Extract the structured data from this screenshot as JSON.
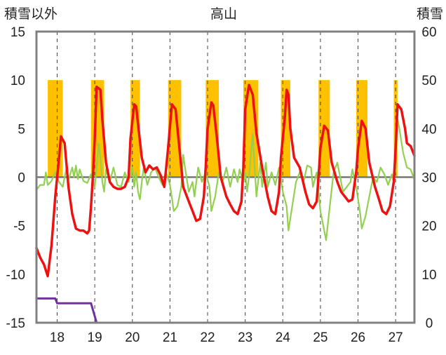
{
  "chart_data": {
    "type": "line",
    "title": "高山",
    "left_axis_label": "積雪以外",
    "right_axis_label": "積雪",
    "left_ylim": [
      -15,
      15
    ],
    "left_ticks": [
      15,
      10,
      5,
      0,
      -5,
      -10,
      -15
    ],
    "right_ylim": [
      0,
      60
    ],
    "right_ticks": [
      60,
      50,
      40,
      30,
      20,
      10,
      0
    ],
    "xlim": [
      17.45,
      27.5
    ],
    "x_ticks": [
      18,
      19,
      20,
      21,
      22,
      23,
      24,
      25,
      26,
      27
    ],
    "grid": {
      "vertical_dashed": true,
      "zero_line": true
    },
    "colors": {
      "temperature": "#ee1111",
      "secondary": "#92d050",
      "sunshine": "#ffc000",
      "snow_depth": "#7030a0",
      "frame": "#808080",
      "zero": "#777777"
    },
    "sunshine_bars": {
      "value": 10,
      "periods": [
        [
          17.75,
          18.15
        ],
        [
          18.9,
          19.25
        ],
        [
          19.95,
          20.2
        ],
        [
          20.95,
          21.3
        ],
        [
          21.95,
          22.3
        ],
        [
          22.95,
          23.35
        ],
        [
          23.95,
          24.2
        ],
        [
          24.95,
          25.25
        ],
        [
          25.95,
          26.25
        ],
        [
          26.95,
          27.05
        ]
      ]
    },
    "series": [
      {
        "key": "temperature",
        "points": [
          [
            17.45,
            -7.3
          ],
          [
            17.55,
            -8.3
          ],
          [
            17.65,
            -9.0
          ],
          [
            17.75,
            -10.2
          ],
          [
            17.85,
            -7.0
          ],
          [
            17.95,
            -2.0
          ],
          [
            18.05,
            2.0
          ],
          [
            18.1,
            4.2
          ],
          [
            18.2,
            3.5
          ],
          [
            18.3,
            -1.0
          ],
          [
            18.4,
            -3.8
          ],
          [
            18.5,
            -5.3
          ],
          [
            18.6,
            -5.5
          ],
          [
            18.7,
            -5.5
          ],
          [
            18.8,
            -5.8
          ],
          [
            18.85,
            -5.5
          ],
          [
            18.9,
            -3.0
          ],
          [
            18.95,
            0.0
          ],
          [
            19.0,
            4.0
          ],
          [
            19.05,
            9.3
          ],
          [
            19.15,
            9.0
          ],
          [
            19.2,
            6.0
          ],
          [
            19.3,
            1.5
          ],
          [
            19.4,
            -0.5
          ],
          [
            19.5,
            -1.0
          ],
          [
            19.6,
            -1.2
          ],
          [
            19.7,
            -1.2
          ],
          [
            19.8,
            -1.0
          ],
          [
            19.9,
            0.0
          ],
          [
            19.95,
            4.0
          ],
          [
            20.05,
            7.5
          ],
          [
            20.1,
            7.3
          ],
          [
            20.15,
            5.5
          ],
          [
            20.25,
            2.0
          ],
          [
            20.35,
            0.5
          ],
          [
            20.45,
            1.2
          ],
          [
            20.55,
            0.8
          ],
          [
            20.65,
            1.0
          ],
          [
            20.75,
            0.2
          ],
          [
            20.85,
            -1.0
          ],
          [
            20.95,
            3.0
          ],
          [
            21.05,
            7.5
          ],
          [
            21.15,
            7.0
          ],
          [
            21.25,
            3.0
          ],
          [
            21.35,
            -1.0
          ],
          [
            21.5,
            -2.5
          ],
          [
            21.6,
            -3.5
          ],
          [
            21.7,
            -4.5
          ],
          [
            21.8,
            -4.3
          ],
          [
            21.9,
            -2.0
          ],
          [
            21.95,
            1.0
          ],
          [
            22.0,
            5.0
          ],
          [
            22.1,
            7.7
          ],
          [
            22.15,
            7.4
          ],
          [
            22.25,
            4.0
          ],
          [
            22.35,
            0.0
          ],
          [
            22.5,
            -2.0
          ],
          [
            22.6,
            -2.8
          ],
          [
            22.7,
            -3.5
          ],
          [
            22.8,
            -3.8
          ],
          [
            22.9,
            -2.5
          ],
          [
            22.95,
            1.0
          ],
          [
            23.0,
            7.0
          ],
          [
            23.1,
            9.5
          ],
          [
            23.2,
            8.5
          ],
          [
            23.3,
            4.5
          ],
          [
            23.45,
            1.0
          ],
          [
            23.6,
            -2.0
          ],
          [
            23.7,
            -3.5
          ],
          [
            23.8,
            -3.8
          ],
          [
            23.9,
            -1.5
          ],
          [
            23.95,
            2.0
          ],
          [
            24.05,
            6.0
          ],
          [
            24.1,
            9.0
          ],
          [
            24.15,
            8.5
          ],
          [
            24.2,
            5.0
          ],
          [
            24.3,
            2.0
          ],
          [
            24.45,
            1.0
          ],
          [
            24.6,
            -1.5
          ],
          [
            24.7,
            -2.8
          ],
          [
            24.8,
            -3.2
          ],
          [
            24.9,
            -2.5
          ],
          [
            24.95,
            0.0
          ],
          [
            25.0,
            3.0
          ],
          [
            25.1,
            5.3
          ],
          [
            25.2,
            4.8
          ],
          [
            25.3,
            1.5
          ],
          [
            25.45,
            -0.5
          ],
          [
            25.55,
            -1.5
          ],
          [
            25.65,
            -2.0
          ],
          [
            25.75,
            -2.5
          ],
          [
            25.85,
            -2.3
          ],
          [
            25.95,
            0.5
          ],
          [
            26.0,
            3.0
          ],
          [
            26.1,
            5.8
          ],
          [
            26.2,
            5.0
          ],
          [
            26.3,
            1.5
          ],
          [
            26.45,
            -1.0
          ],
          [
            26.55,
            -2.2
          ],
          [
            26.65,
            -3.5
          ],
          [
            26.75,
            -3.8
          ],
          [
            26.85,
            -3.0
          ],
          [
            26.95,
            -0.5
          ],
          [
            27.0,
            3.0
          ],
          [
            27.05,
            7.5
          ],
          [
            27.15,
            7.0
          ],
          [
            27.25,
            5.0
          ],
          [
            27.3,
            3.5
          ],
          [
            27.4,
            3.2
          ],
          [
            27.5,
            2.2
          ]
        ]
      },
      {
        "key": "secondary",
        "points": [
          [
            17.45,
            -1.3
          ],
          [
            17.55,
            -0.8
          ],
          [
            17.65,
            -0.8
          ],
          [
            17.7,
            0.5
          ],
          [
            17.75,
            -0.8
          ],
          [
            17.85,
            -0.4
          ],
          [
            17.95,
            0.5
          ],
          [
            18.05,
            -0.5
          ],
          [
            18.15,
            -1.0
          ],
          [
            18.25,
            1.0
          ],
          [
            18.3,
            -0.3
          ],
          [
            18.4,
            1.0
          ],
          [
            18.45,
            0.0
          ],
          [
            18.5,
            1.2
          ],
          [
            18.55,
            -0.2
          ],
          [
            18.6,
            0.8
          ],
          [
            18.7,
            -0.4
          ],
          [
            18.8,
            -0.6
          ],
          [
            18.9,
            0.3
          ],
          [
            19.0,
            -1.0
          ],
          [
            19.05,
            1.0
          ],
          [
            19.1,
            3.5
          ],
          [
            19.15,
            2.0
          ],
          [
            19.2,
            -0.5
          ],
          [
            19.25,
            -1.5
          ],
          [
            19.3,
            0.8
          ],
          [
            19.4,
            -0.5
          ],
          [
            19.5,
            1.0
          ],
          [
            19.6,
            -0.8
          ],
          [
            19.7,
            -1.0
          ],
          [
            19.8,
            0.5
          ],
          [
            19.9,
            -0.5
          ],
          [
            20.0,
            1.0
          ],
          [
            20.05,
            -1.0
          ],
          [
            20.1,
            0.5
          ],
          [
            20.15,
            -1.5
          ],
          [
            20.2,
            -2.3
          ],
          [
            20.25,
            -0.5
          ],
          [
            20.3,
            1.0
          ],
          [
            20.4,
            -0.8
          ],
          [
            20.5,
            0.5
          ],
          [
            20.6,
            1.0
          ],
          [
            20.7,
            0.0
          ],
          [
            20.8,
            -0.8
          ],
          [
            20.9,
            0.5
          ],
          [
            21.0,
            -0.8
          ],
          [
            21.1,
            -3.5
          ],
          [
            21.2,
            -3.0
          ],
          [
            21.3,
            -1.0
          ],
          [
            21.35,
            2.3
          ],
          [
            21.4,
            1.0
          ],
          [
            21.5,
            -1.5
          ],
          [
            21.6,
            -0.5
          ],
          [
            21.65,
            -2.0
          ],
          [
            21.75,
            1.0
          ],
          [
            21.85,
            -0.5
          ],
          [
            21.95,
            0.5
          ],
          [
            22.05,
            -1.0
          ],
          [
            22.1,
            -3.5
          ],
          [
            22.2,
            -2.0
          ],
          [
            22.3,
            0.5
          ],
          [
            22.4,
            -0.5
          ],
          [
            22.5,
            1.0
          ],
          [
            22.6,
            -1.0
          ],
          [
            22.7,
            0.8
          ],
          [
            22.8,
            -0.5
          ],
          [
            22.85,
            0.8
          ],
          [
            22.95,
            -0.5
          ],
          [
            23.0,
            0.5
          ],
          [
            23.05,
            -1.5
          ],
          [
            23.1,
            0.0
          ],
          [
            23.2,
            4.5
          ],
          [
            23.25,
            1.0
          ],
          [
            23.3,
            -2.0
          ],
          [
            23.4,
            1.5
          ],
          [
            23.45,
            -1.0
          ],
          [
            23.55,
            1.5
          ],
          [
            23.6,
            -1.0
          ],
          [
            23.7,
            0.5
          ],
          [
            23.8,
            -0.8
          ],
          [
            23.9,
            1.0
          ],
          [
            24.0,
            -1.5
          ],
          [
            24.1,
            -3.0
          ],
          [
            24.15,
            -5.5
          ],
          [
            24.25,
            -3.0
          ],
          [
            24.35,
            -0.5
          ],
          [
            24.45,
            0.5
          ],
          [
            24.55,
            -0.5
          ],
          [
            24.65,
            1.2
          ],
          [
            24.75,
            1.0
          ],
          [
            24.8,
            -1.0
          ],
          [
            24.9,
            0.5
          ],
          [
            25.0,
            -3.5
          ],
          [
            25.1,
            -5.5
          ],
          [
            25.15,
            -6.5
          ],
          [
            25.25,
            -3.0
          ],
          [
            25.35,
            0.5
          ],
          [
            25.45,
            1.5
          ],
          [
            25.55,
            -0.5
          ],
          [
            25.6,
            -1.5
          ],
          [
            25.7,
            -1.0
          ],
          [
            25.8,
            -0.5
          ],
          [
            25.85,
            0.8
          ],
          [
            25.95,
            -1.0
          ],
          [
            26.05,
            -3.5
          ],
          [
            26.1,
            -5.3
          ],
          [
            26.2,
            -4.0
          ],
          [
            26.3,
            -2.0
          ],
          [
            26.4,
            0.0
          ],
          [
            26.5,
            -0.5
          ],
          [
            26.6,
            1.0
          ],
          [
            26.7,
            0.3
          ],
          [
            26.8,
            -0.8
          ],
          [
            26.9,
            0.3
          ],
          [
            26.95,
            -0.5
          ],
          [
            27.0,
            1.0
          ],
          [
            27.05,
            6.0
          ],
          [
            27.1,
            5.0
          ],
          [
            27.2,
            2.5
          ],
          [
            27.3,
            1.0
          ],
          [
            27.4,
            0.8
          ],
          [
            27.5,
            -0.3
          ]
        ]
      },
      {
        "key": "snow_depth",
        "axis": "right",
        "points": [
          [
            17.45,
            5
          ],
          [
            17.95,
            5
          ],
          [
            18.0,
            4
          ],
          [
            18.9,
            4
          ],
          [
            19.05,
            0
          ],
          [
            27.5,
            0
          ]
        ]
      }
    ]
  }
}
